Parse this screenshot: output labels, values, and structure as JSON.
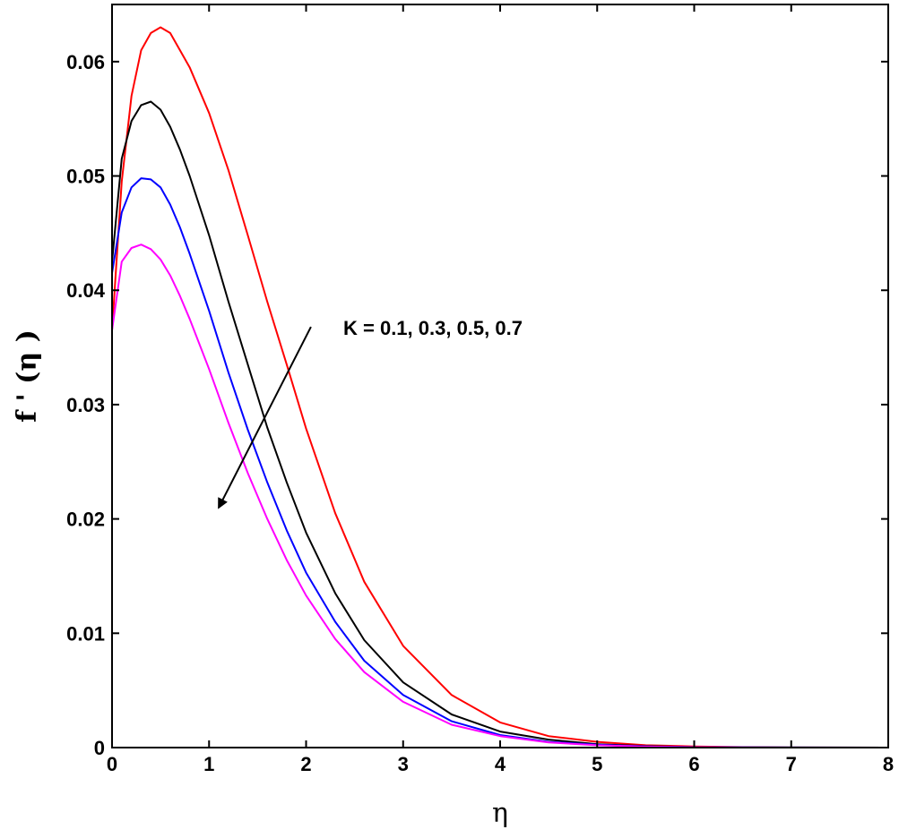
{
  "chart_data": {
    "type": "line",
    "title": "",
    "xlabel": "η",
    "ylabel": "f ' (η )",
    "xlim": [
      0,
      8
    ],
    "ylim": [
      0,
      0.065
    ],
    "xticks": [
      0,
      1,
      2,
      3,
      4,
      5,
      6,
      7,
      8
    ],
    "xtick_labels": [
      "0",
      "1",
      "2",
      "3",
      "4",
      "5",
      "6",
      "7",
      "8"
    ],
    "yticks": [
      0,
      0.01,
      0.02,
      0.03,
      0.04,
      0.05,
      0.06
    ],
    "ytick_labels": [
      "0",
      "0.01",
      "0.02",
      "0.03",
      "0.04",
      "0.05",
      "0.06"
    ],
    "grid": false,
    "annotation": {
      "text": "K = 0.1, 0.3, 0.5, 0.7",
      "arrow_from": [
        2.05,
        0.0368
      ],
      "arrow_to": [
        1.1,
        0.021
      ]
    },
    "series": [
      {
        "color": "#ff0000",
        "x": [
          0,
          0.1,
          0.2,
          0.3,
          0.4,
          0.5,
          0.6,
          0.7,
          0.8,
          1.0,
          1.2,
          1.4,
          1.6,
          1.8,
          2.0,
          2.3,
          2.6,
          3.0,
          3.5,
          4.0,
          4.5,
          5.0,
          5.5,
          6.0,
          6.5,
          7.0,
          8.0
        ],
        "y": [
          0.0365,
          0.0495,
          0.057,
          0.061,
          0.0625,
          0.063,
          0.0625,
          0.061,
          0.0595,
          0.0555,
          0.0505,
          0.0448,
          0.039,
          0.0335,
          0.0279,
          0.0205,
          0.0145,
          0.0089,
          0.0046,
          0.0022,
          0.001,
          0.0005,
          0.0002,
          0.0001,
          4e-05,
          1e-05,
          0
        ]
      },
      {
        "color": "#000000",
        "x": [
          0,
          0.1,
          0.2,
          0.3,
          0.4,
          0.5,
          0.6,
          0.7,
          0.8,
          1.0,
          1.2,
          1.4,
          1.6,
          1.8,
          2.0,
          2.3,
          2.6,
          3.0,
          3.5,
          4.0,
          4.5,
          5.0,
          5.5,
          6.0,
          6.5,
          7.0,
          8.0
        ],
        "y": [
          0.0425,
          0.0515,
          0.0548,
          0.0562,
          0.0565,
          0.0558,
          0.0543,
          0.0523,
          0.05,
          0.0448,
          0.039,
          0.0335,
          0.028,
          0.0232,
          0.0188,
          0.0135,
          0.0094,
          0.0057,
          0.0029,
          0.0014,
          0.0007,
          0.0003,
          0.00013,
          5e-05,
          2e-05,
          1e-05,
          0
        ]
      },
      {
        "color": "#0000ff",
        "x": [
          0,
          0.1,
          0.2,
          0.3,
          0.4,
          0.5,
          0.6,
          0.7,
          0.8,
          1.0,
          1.2,
          1.4,
          1.6,
          1.8,
          2.0,
          2.3,
          2.6,
          3.0,
          3.5,
          4.0,
          4.5,
          5.0,
          5.5,
          6.0,
          6.5,
          7.0,
          8.0
        ],
        "y": [
          0.0415,
          0.0468,
          0.049,
          0.0498,
          0.0497,
          0.049,
          0.0475,
          0.0455,
          0.0432,
          0.0382,
          0.0328,
          0.0278,
          0.0232,
          0.019,
          0.0153,
          0.011,
          0.0076,
          0.0046,
          0.0023,
          0.0011,
          0.0005,
          0.00025,
          0.0001,
          4e-05,
          2e-05,
          1e-05,
          0
        ]
      },
      {
        "color": "#ff00ff",
        "x": [
          0,
          0.1,
          0.2,
          0.3,
          0.4,
          0.5,
          0.6,
          0.7,
          0.8,
          1.0,
          1.2,
          1.4,
          1.6,
          1.8,
          2.0,
          2.3,
          2.6,
          3.0,
          3.5,
          4.0,
          4.5,
          5.0,
          5.5,
          6.0,
          6.5,
          7.0,
          8.0
        ],
        "y": [
          0.0365,
          0.0425,
          0.0437,
          0.044,
          0.0436,
          0.0427,
          0.0413,
          0.0395,
          0.0375,
          0.0331,
          0.0284,
          0.024,
          0.02,
          0.0164,
          0.0133,
          0.0095,
          0.0066,
          0.004,
          0.002,
          0.001,
          0.00045,
          0.0002,
          9e-05,
          4e-05,
          1e-05,
          0,
          0
        ]
      }
    ]
  }
}
